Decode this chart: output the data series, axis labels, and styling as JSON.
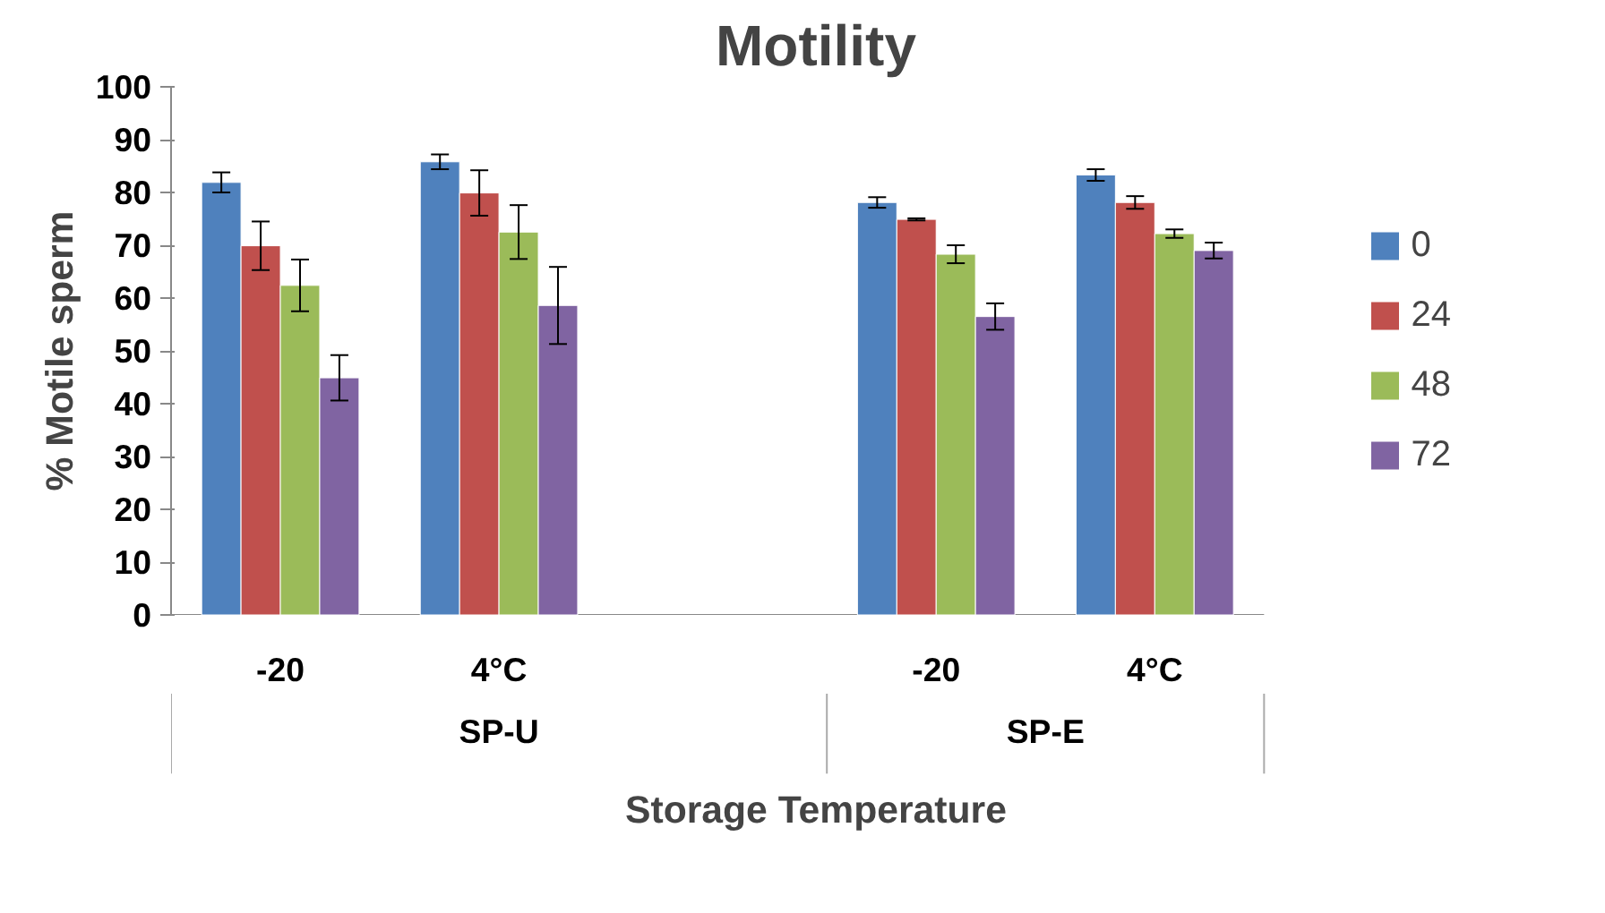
{
  "chart_data": {
    "type": "bar",
    "title": "Motility",
    "xlabel": "Storage Temperature",
    "ylabel": "% Motile sperm",
    "categories": [
      "-20",
      "4°C",
      null,
      "-20",
      "4°C"
    ],
    "annotations": [
      "SP-U",
      "SP-E"
    ],
    "series": [
      {
        "name": "0",
        "color": "#4f81bd",
        "values": [
          81.9,
          85.8,
          null,
          78.1,
          83.3
        ],
        "errors": [
          1.9,
          1.4,
          null,
          1.0,
          1.1
        ]
      },
      {
        "name": "24",
        "color": "#c0504d",
        "values": [
          69.9,
          79.9,
          null,
          74.9,
          78.1
        ],
        "errors": [
          4.6,
          4.3,
          null,
          0.2,
          1.2
        ]
      },
      {
        "name": "48",
        "color": "#9bbb59",
        "values": [
          62.4,
          72.5,
          null,
          68.3,
          72.2
        ],
        "errors": [
          4.9,
          5.1,
          null,
          1.7,
          0.8
        ]
      },
      {
        "name": "72",
        "color": "#8064a2",
        "values": [
          44.9,
          58.6,
          null,
          56.5,
          69.0
        ],
        "errors": [
          4.3,
          7.3,
          null,
          2.5,
          1.5
        ]
      }
    ],
    "ylim": [
      0,
      100
    ],
    "yticks": [
      0,
      10,
      20,
      30,
      40,
      50,
      60,
      70,
      80,
      90,
      100
    ],
    "grid": false,
    "legend": "right"
  }
}
